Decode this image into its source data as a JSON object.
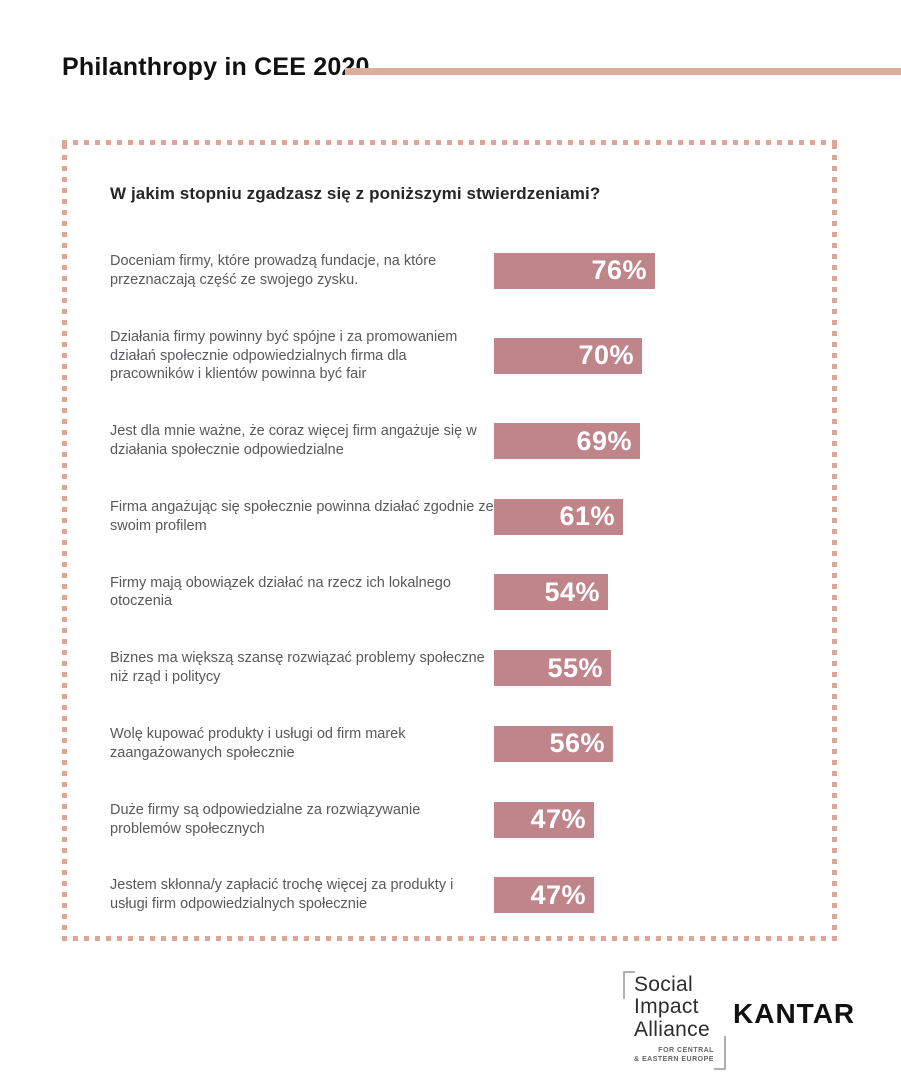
{
  "header": {
    "title": "Philanthropy in CEE 2020"
  },
  "chart_data": {
    "type": "bar",
    "orientation": "horizontal",
    "title": "W jakim stopniu zgadzasz się z poniższymi stwierdzeniami?",
    "unit": "%",
    "xlim": [
      0,
      100
    ],
    "legend": "none",
    "grid": false,
    "categories": [
      "Doceniam firmy, które prowadzą fundacje, na które przeznaczają część ze swojego zysku.",
      "Działania firmy powinny być spójne i za promowaniem działań społecznie odpowiedzialnych firma dla pracowników i klientów powinna być fair",
      "Jest dla mnie ważne, że coraz więcej firm angażuje się w działania społecznie odpowiedzialne",
      "Firma angażując się społecznie powinna działać zgodnie ze swoim profilem",
      "Firmy mają obowiązek działać na rzecz ich lokalnego otoczenia",
      "Biznes ma większą szansę rozwiązać problemy społeczne niż rząd i politycy",
      "Wolę kupować produkty i usługi od firm marek zaangażowanych społecznie",
      "Duże firmy są odpowiedzialne za rozwiązywanie problemów społecznych",
      "Jestem skłonna/y zapłacić trochę więcej za produkty i usługi firm odpowiedzialnych społecznie"
    ],
    "values": [
      76,
      70,
      69,
      61,
      54,
      55,
      56,
      47,
      47
    ],
    "value_labels": [
      "76%",
      "70%",
      "69%",
      "61%",
      "54%",
      "55%",
      "56%",
      "47%",
      "47%"
    ]
  },
  "footer": {
    "social_impact_alliance": {
      "line1": "Social",
      "line2": "Impact",
      "line3": "Alliance",
      "tagline1": "FOR CENTRAL",
      "tagline2": "& EASTERN EUROPE"
    },
    "kantar": "KANTAR"
  },
  "colors": {
    "bar": "#bf858b",
    "accent_line": "#dfab9c",
    "dotted_border": "#dca796",
    "statement_text": "#58595b",
    "heading_text": "#262626",
    "title_text": "#111111"
  }
}
